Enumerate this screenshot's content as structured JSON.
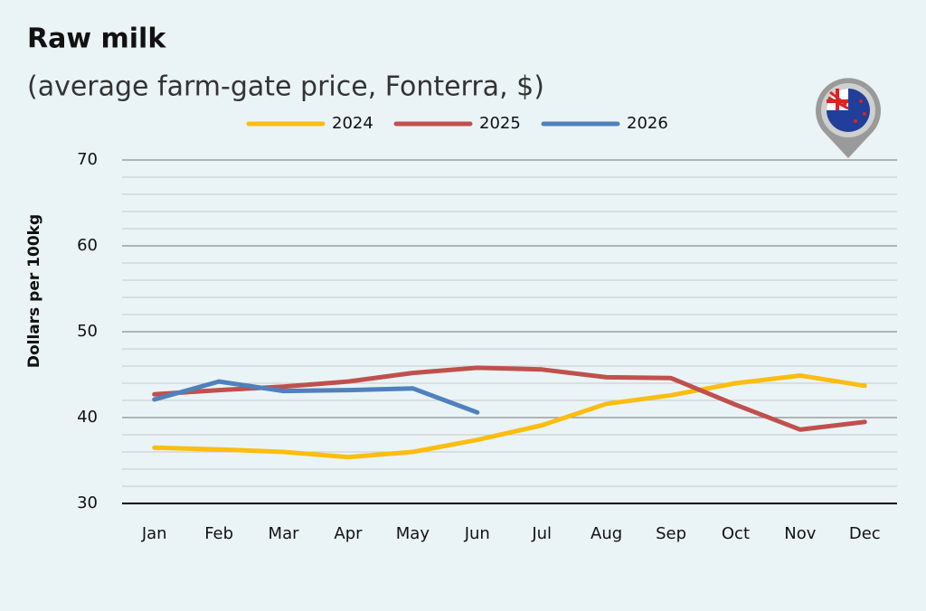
{
  "chart_data": {
    "type": "line",
    "title": "Raw milk",
    "subtitle": "(average farm-gate price, Fonterra, $)",
    "ylabel": "Dollars per 100kg",
    "categories": [
      "Jan",
      "Feb",
      "Mar",
      "Apr",
      "May",
      "Jun",
      "Jul",
      "Aug",
      "Sep",
      "Oct",
      "Nov",
      "Dec"
    ],
    "series": [
      {
        "name": "2024",
        "color": "#fbbd10",
        "values": [
          36.5,
          36.3,
          36.0,
          35.4,
          36.0,
          37.4,
          39.1,
          41.6,
          42.6,
          44.0,
          44.9,
          43.7
        ]
      },
      {
        "name": "2025",
        "color": "#c0504d",
        "values": [
          42.7,
          43.2,
          43.6,
          44.2,
          45.2,
          45.8,
          45.6,
          44.7,
          44.6,
          41.5,
          38.6,
          39.5
        ]
      },
      {
        "name": "2026",
        "color": "#4f81bd",
        "values": [
          42.1,
          44.2,
          43.1,
          43.2,
          43.4,
          40.6,
          null,
          null,
          null,
          null,
          null,
          null
        ]
      }
    ],
    "ylim": [
      30,
      70
    ],
    "yticks": [
      30,
      40,
      50,
      60,
      70
    ],
    "minor_yticks": [
      32,
      34,
      36,
      38,
      42,
      44,
      46,
      48,
      52,
      54,
      56,
      58,
      62,
      64,
      66,
      68
    ],
    "grid": true,
    "legend": "top"
  }
}
